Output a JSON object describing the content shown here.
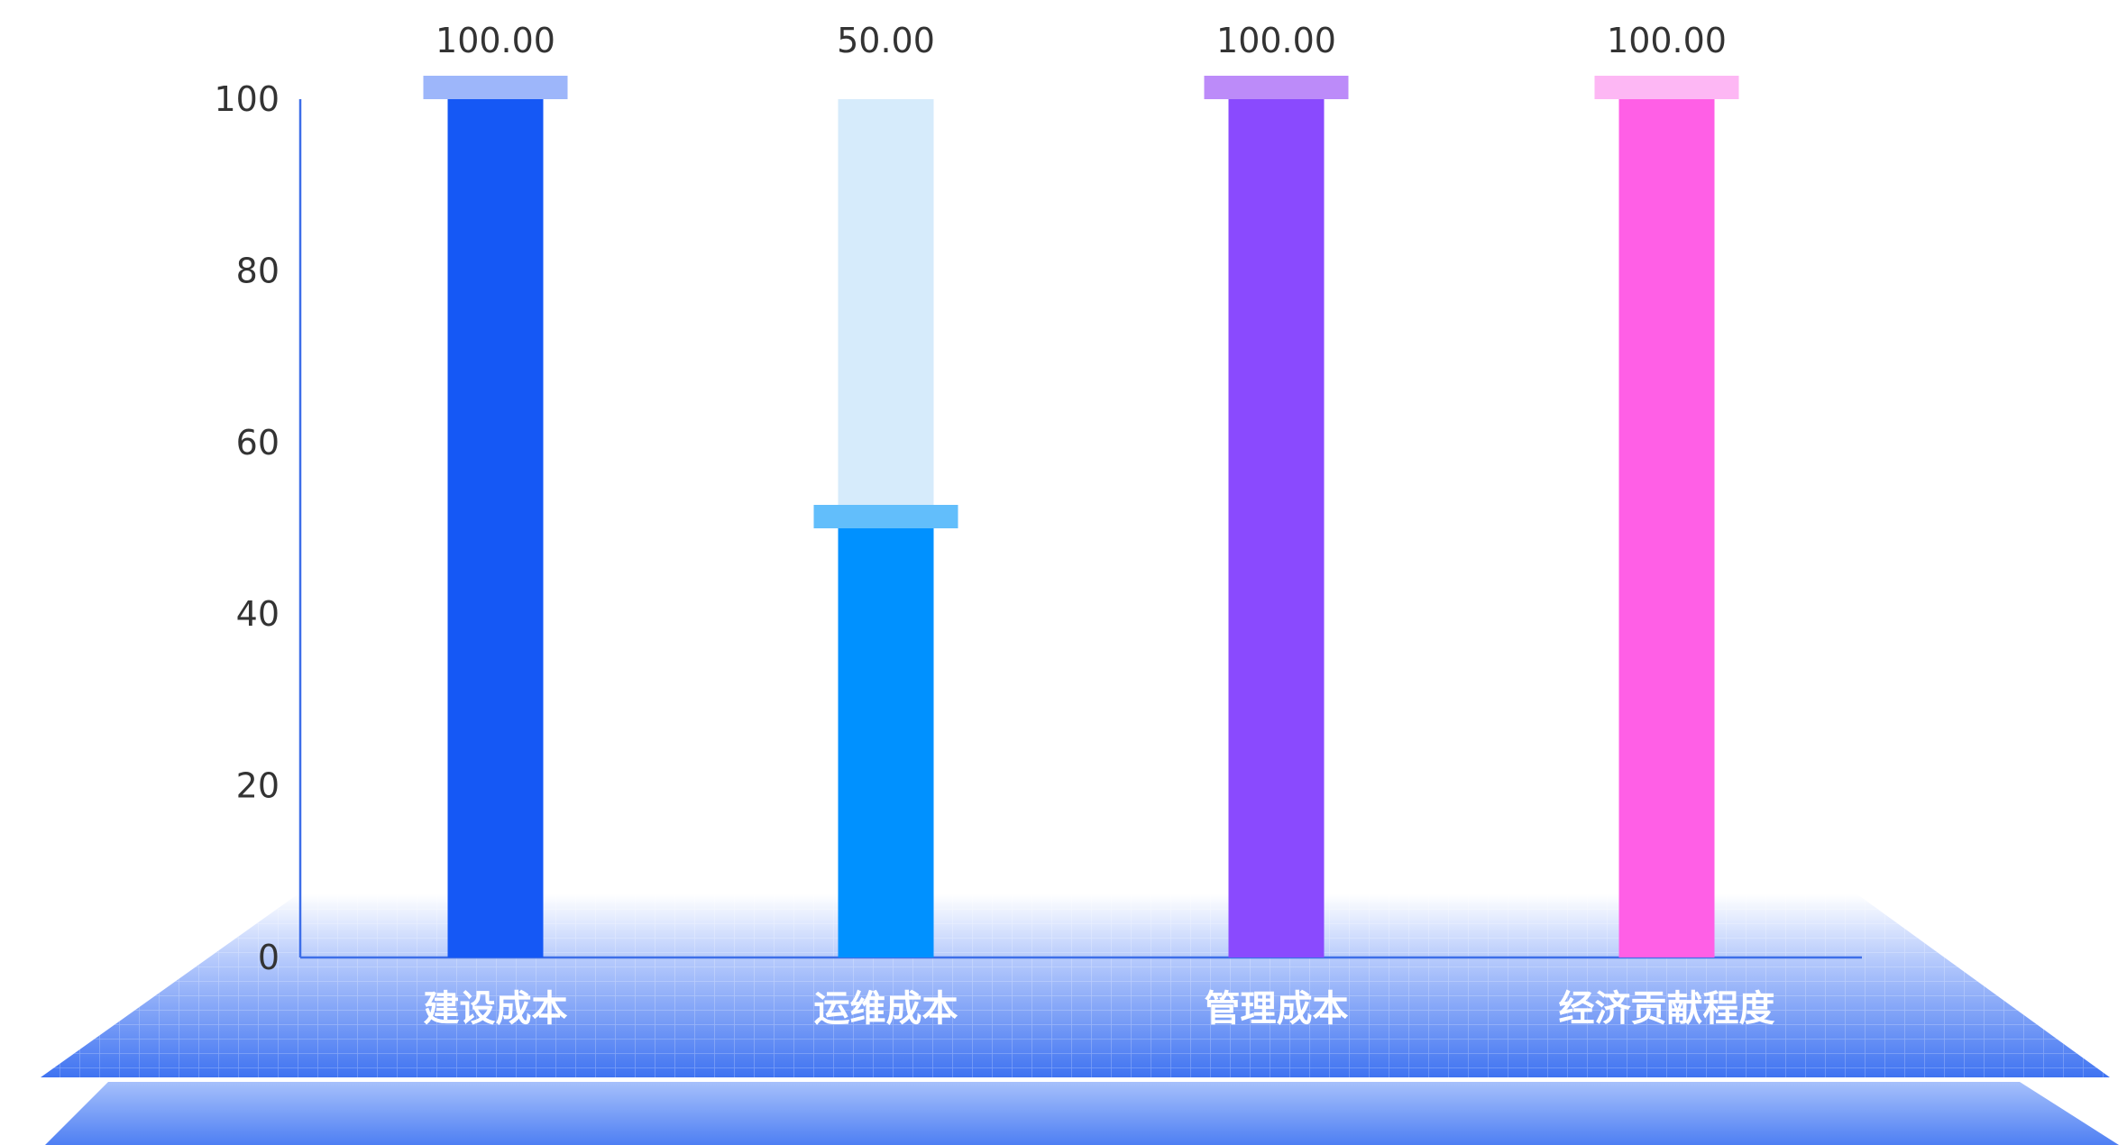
{
  "chart_data": {
    "type": "bar",
    "categories": [
      "建设成本",
      "运维成本",
      "管理成本",
      "经济贡献程度"
    ],
    "values": [
      100,
      50,
      100,
      100
    ],
    "value_labels": [
      "100.00",
      "50.00",
      "100.00",
      "100.00"
    ],
    "title": "",
    "xlabel": "",
    "ylabel": "",
    "ylim": [
      0,
      100
    ],
    "y_ticks": [
      "0",
      "20",
      "40",
      "60",
      "80",
      "100"
    ],
    "grid": false,
    "legend": "none",
    "colors": {
      "bars": [
        "#1558F5",
        "#0091FF",
        "#8A4AFE",
        "#FF5FE6"
      ],
      "caps": [
        "#9DB6FA",
        "#62BEFB",
        "#BC8BF9",
        "#FDB7F4"
      ],
      "background_track": "#D6EBFB",
      "axis": "#3D6EE8",
      "floor_dark": "#3A70F0",
      "floor_light": "#DDE6FE"
    }
  }
}
